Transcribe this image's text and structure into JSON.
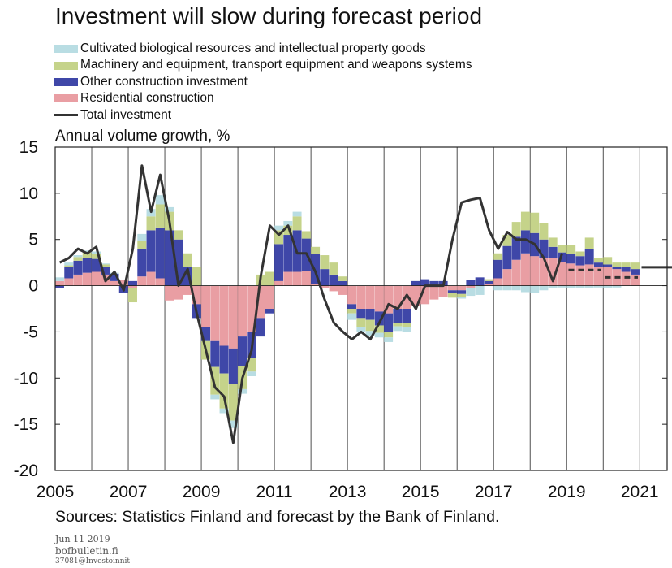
{
  "title": "Investment will slow during forecast period",
  "legend": [
    {
      "label": "Cultivated biological resources and intellectual property goods",
      "color": "#b9dde3",
      "kind": "bar"
    },
    {
      "label": "Machinery and equipment, transport equipment and weapons systems",
      "color": "#c5d38a",
      "kind": "bar"
    },
    {
      "label": "Other construction investment",
      "color": "#3f47a8",
      "kind": "bar"
    },
    {
      "label": "Residential construction",
      "color": "#e99ea3",
      "kind": "bar"
    },
    {
      "label": "Total investment",
      "color": "#333333",
      "kind": "line"
    }
  ],
  "ylabel": "Annual volume growth, %",
  "source": "Sources: Statistics Finland and forecast by the Bank of Finland.",
  "footer": {
    "date": "Jun 11 2019",
    "site": "bofbulletin.fi",
    "code": "37081@Investoinnit"
  },
  "chart_data": {
    "type": "bar",
    "stacked": true,
    "x_start": 2005.0,
    "x_step": 0.25,
    "xlim": [
      2005,
      2021.75
    ],
    "ylim": [
      -20,
      15
    ],
    "yticks": [
      15,
      10,
      5,
      0,
      -5,
      -10,
      -15,
      -20
    ],
    "xticks": [
      "2005",
      "2007",
      "2009",
      "2011",
      "2013",
      "2015",
      "2017",
      "2019",
      "2021"
    ],
    "grid": "vertical",
    "series": [
      {
        "name": "Residential construction",
        "color": "#e99ea3",
        "values": [
          0.5,
          0.8,
          1.2,
          1.4,
          1.5,
          1.2,
          0.5,
          0.6,
          -0.3,
          1.0,
          1.5,
          0.8,
          -1.6,
          -1.5,
          -1.0,
          -2.0,
          -4.5,
          -6.0,
          -6.5,
          -6.8,
          -5.5,
          -5.0,
          -3.5,
          -2.5,
          0.5,
          1.5,
          1.5,
          1.6,
          0.2,
          -0.3,
          -0.6,
          -1.0,
          -2.0,
          -2.5,
          -2.5,
          -2.8,
          -3.0,
          -2.5,
          -2.5,
          -2.2,
          -2.0,
          -1.5,
          -1.2,
          -0.5,
          -0.5,
          -0.3,
          0.0,
          0.2,
          0.8,
          1.8,
          2.8,
          3.5,
          3.2,
          3.0,
          3.0,
          2.6,
          2.4,
          2.2,
          2.3,
          2.0,
          2.0,
          1.8,
          1.5,
          1.2
        ]
      },
      {
        "name": "Other construction investment",
        "color": "#3f47a8",
        "values": [
          -0.3,
          1.2,
          1.5,
          1.6,
          1.4,
          0.8,
          0.8,
          -0.8,
          0.5,
          3.0,
          4.5,
          5.5,
          6.0,
          5.0,
          2.0,
          -1.5,
          -1.5,
          -2.8,
          -3.0,
          -3.8,
          -3.2,
          -2.8,
          -2.0,
          -0.5,
          4.0,
          4.0,
          4.5,
          3.5,
          3.2,
          1.8,
          1.2,
          0.5,
          -0.5,
          -1.0,
          -1.2,
          -1.5,
          -2.0,
          -1.5,
          -1.5,
          0.5,
          0.7,
          0.5,
          0.5,
          -0.3,
          -0.4,
          0.6,
          0.9,
          0.3,
          2.0,
          2.5,
          2.5,
          2.5,
          2.5,
          2.0,
          1.2,
          1.0,
          1.0,
          1.0,
          1.7,
          0.5,
          0.3,
          0.2,
          0.5,
          0.6
        ]
      },
      {
        "name": "Machinery and equipment, transport equipment and weapons systems",
        "color": "#c5d38a",
        "values": [
          0.0,
          0.2,
          0.4,
          0.6,
          0.5,
          0.3,
          0.0,
          0.0,
          -1.5,
          0.8,
          1.5,
          2.5,
          2.0,
          1.0,
          1.5,
          2.0,
          -2.0,
          -3.0,
          -3.8,
          -4.0,
          -2.5,
          -1.5,
          1.2,
          1.5,
          1.5,
          1.0,
          1.5,
          0.8,
          0.8,
          1.5,
          1.3,
          0.5,
          -0.5,
          -1.0,
          -1.2,
          -0.8,
          -0.6,
          -0.4,
          -0.5,
          0.0,
          0.0,
          0.0,
          0.0,
          -0.5,
          -0.3,
          0.0,
          0.0,
          0.2,
          0.7,
          1.2,
          1.6,
          2.0,
          2.2,
          1.8,
          1.0,
          0.8,
          1.0,
          0.5,
          1.2,
          0.5,
          0.8,
          0.5,
          0.5,
          0.7
        ]
      },
      {
        "name": "Cultivated biological resources and intellectual property goods",
        "color": "#b9dde3",
        "values": [
          0.4,
          0.3,
          0.2,
          0.2,
          0.3,
          0.1,
          0.1,
          0.0,
          0.0,
          0.8,
          0.8,
          1.0,
          0.5,
          0.0,
          0.0,
          0.0,
          0.0,
          -0.5,
          -0.5,
          -0.8,
          -0.5,
          -0.5,
          0.0,
          0.0,
          0.5,
          0.5,
          0.5,
          0.0,
          0.0,
          0.0,
          0.0,
          0.0,
          -0.7,
          -0.5,
          -0.5,
          -0.5,
          -0.5,
          -0.5,
          -0.5,
          0.0,
          0.0,
          0.0,
          0.0,
          0.0,
          -0.2,
          -0.8,
          -1.0,
          0.0,
          -0.5,
          -0.5,
          -0.5,
          -0.7,
          -0.8,
          -0.5,
          -0.3,
          -0.2,
          -0.3,
          -0.3,
          -0.3,
          -0.2,
          -0.3,
          -0.2,
          0.0,
          0.0
        ]
      }
    ],
    "total": {
      "name": "Total investment",
      "color": "#333333",
      "x": [
        2005.0,
        2005.25,
        2005.5,
        2005.75,
        2006.0,
        2006.25,
        2006.5,
        2006.75,
        2007.0,
        2007.25,
        2007.5,
        2007.75,
        2008.0,
        2008.25,
        2008.5,
        2008.75,
        2009.0,
        2009.25,
        2009.5,
        2009.75,
        2010.0,
        2010.25,
        2010.5,
        2010.75,
        2011.0,
        2011.25,
        2011.5,
        2011.75,
        2012.0,
        2012.25,
        2012.5,
        2012.75,
        2013.0,
        2013.25,
        2013.5,
        2013.75,
        2014.0,
        2014.25,
        2014.5,
        2014.75,
        2015.0,
        2015.25,
        2015.5,
        2015.75,
        2016.0,
        2016.25,
        2016.5,
        2016.75,
        2017.0,
        2017.25,
        2017.5,
        2017.75,
        2018.0,
        2018.25,
        2018.5,
        2018.75
      ],
      "y": [
        2.5,
        3.0,
        4.0,
        3.5,
        4.2,
        0.5,
        1.5,
        -0.5,
        4.0,
        13.0,
        8.0,
        12.0,
        7.0,
        0.0,
        1.8,
        -3.0,
        -7.0,
        -11.0,
        -12.0,
        -17.0,
        -10.0,
        -7.0,
        1.0,
        6.5,
        5.5,
        6.5,
        3.5,
        3.5,
        1.5,
        -1.5,
        -4.0,
        -5.0,
        -5.8,
        -5.0,
        -5.8,
        -4.0,
        -2.0,
        -2.5,
        -1.0,
        -2.5,
        0.0,
        0.0,
        0.0,
        5.0,
        9.0,
        9.3,
        9.5,
        6.0,
        4.0,
        5.8,
        5.0,
        5.0,
        4.5,
        3.0,
        0.5,
        3.5
      ]
    },
    "forecast": [
      {
        "year": 2019,
        "value": 1.7
      },
      {
        "year": 2020,
        "value": 0.9
      },
      {
        "year": 2021,
        "value": 2.0
      }
    ]
  }
}
